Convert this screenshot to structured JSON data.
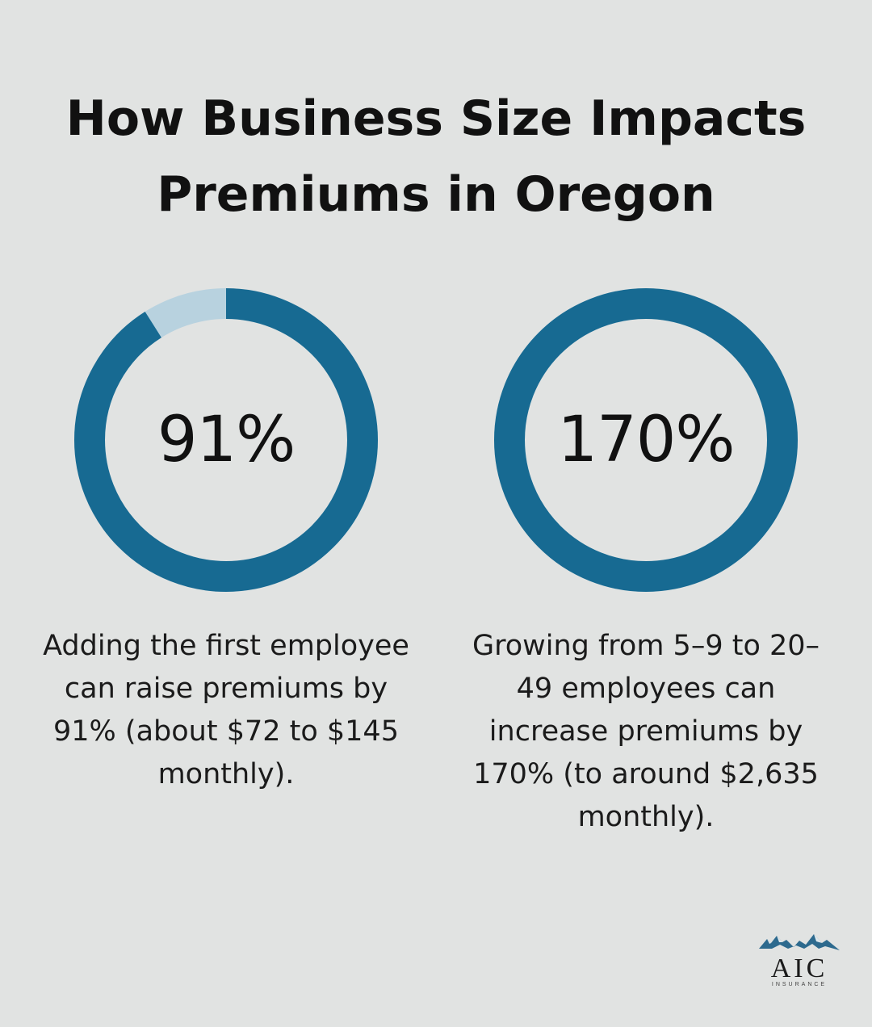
{
  "title": "How Business Size Impacts Premiums in Oregon",
  "colors": {
    "background": "#e1e3e2",
    "ring_fill": "#176a92",
    "ring_track": "#b8d2df",
    "logo_mountain": "#2d6a8e"
  },
  "chart_data": [
    {
      "type": "pie",
      "variant": "donut",
      "center_label": "91%",
      "value": 91,
      "max": 100,
      "caption": "Adding the first employee can raise premiums by 91% (about $72 to $145 monthly)."
    },
    {
      "type": "pie",
      "variant": "donut",
      "center_label": "170%",
      "value": 100,
      "max": 100,
      "caption": "Growing from 5–9 to 20–49 employees can increase premiums by 170% (to around $2,635 monthly)."
    }
  ],
  "logo": {
    "name": "AIC",
    "subtitle": "INSURANCE",
    "icon": "mountain-icon"
  }
}
